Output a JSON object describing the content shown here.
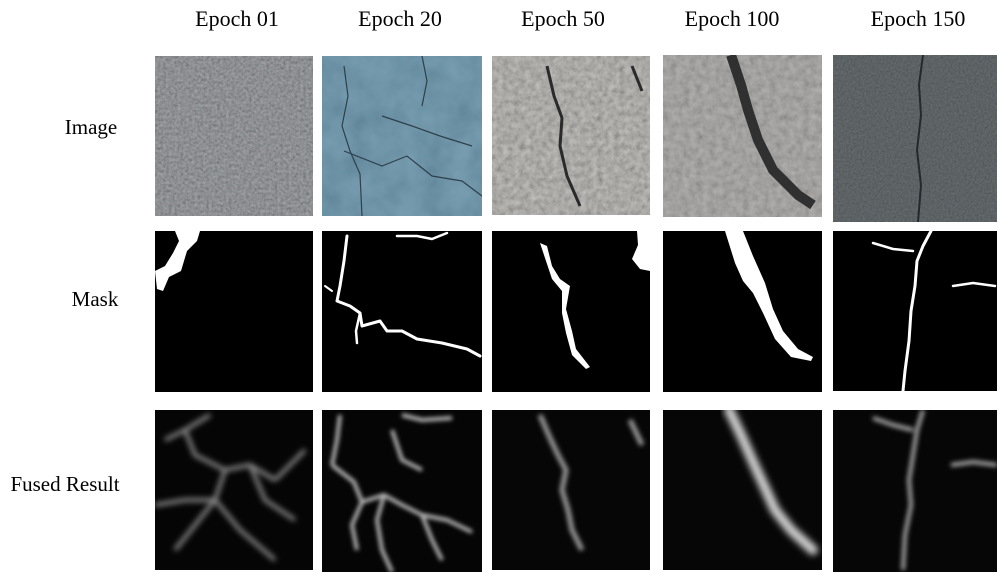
{
  "columns": [
    "Epoch 01",
    "Epoch 20",
    "Epoch 50",
    "Epoch 100",
    "Epoch 150"
  ],
  "rows": [
    "Image",
    "Mask",
    "Fused Result"
  ]
}
